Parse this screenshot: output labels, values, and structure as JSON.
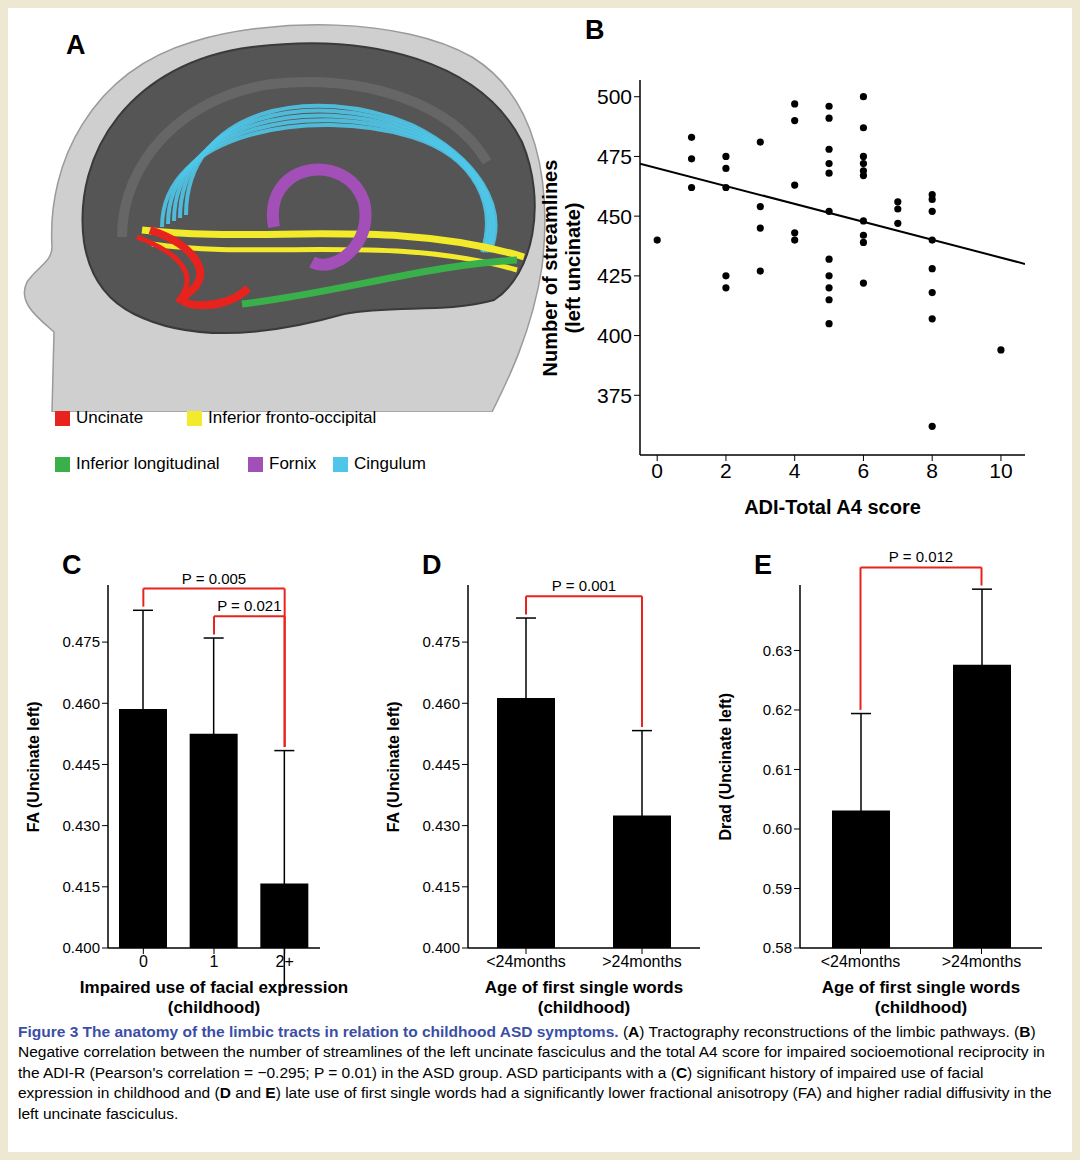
{
  "panel_a": {
    "label": "A",
    "legend": [
      {
        "name": "Uncinate",
        "color": "#e8231d"
      },
      {
        "name": "Inferior fronto-occipital",
        "color": "#f2ea2b"
      },
      {
        "name": "Inferior longitudinal",
        "color": "#39b04a"
      },
      {
        "name": "Fornix",
        "color": "#a24fb8"
      },
      {
        "name": "Cingulum",
        "color": "#4fc6e8"
      }
    ]
  },
  "chart_data": [
    {
      "label": "B",
      "type": "scatter",
      "x_label": "ADI-Total A4 score",
      "y_label": "Number of streamlines\n(left uncinate)",
      "color": "#000000",
      "x": [
        0,
        1,
        1,
        1,
        2,
        2,
        2,
        2,
        2,
        3,
        3,
        3,
        3,
        4,
        4,
        4,
        4,
        4,
        5,
        5,
        5,
        5,
        5,
        5,
        5,
        5,
        5,
        5,
        5,
        6,
        6,
        6,
        6,
        6,
        6,
        6,
        6,
        6,
        6,
        7,
        7,
        7,
        8,
        8,
        8,
        8,
        8,
        8,
        8,
        8,
        10
      ],
      "y": [
        440,
        483,
        474,
        462,
        475,
        470,
        462,
        425,
        420,
        481,
        454,
        445,
        427,
        497,
        490,
        463,
        443,
        440,
        496,
        491,
        478,
        472,
        468,
        452,
        432,
        425,
        420,
        415,
        405,
        500,
        487,
        475,
        472,
        469,
        467,
        448,
        442,
        439,
        422,
        456,
        453,
        447,
        459,
        457,
        452,
        440,
        428,
        418,
        407,
        362,
        394
      ],
      "trend_line": {
        "x": [
          -0.5,
          10.7
        ],
        "y": [
          472,
          430
        ]
      },
      "xlim": [
        -0.5,
        10.7
      ],
      "xticks": [
        0,
        2,
        4,
        6,
        8,
        10
      ],
      "ylim": [
        350,
        507
      ],
      "yticks": [
        375,
        400,
        425,
        450,
        475,
        500
      ]
    },
    {
      "label": "C",
      "type": "bar",
      "x_label": "Impaired use of facial expression\n(childhood)",
      "y_label": "FA (Uncinate left)",
      "categories": [
        "0",
        "1",
        "2+"
      ],
      "values": [
        0.4586,
        0.4525,
        0.4158
      ],
      "errors": [
        0.0242,
        0.0235,
        0.0326
      ],
      "color": "#000000",
      "ylim": [
        0.4,
        0.489
      ],
      "yticks": [
        {
          "value": 0.4,
          "label": "0.400"
        },
        {
          "value": 0.415,
          "label": "0.415"
        },
        {
          "value": 0.43,
          "label": "0.430"
        },
        {
          "value": 0.445,
          "label": "0.445"
        },
        {
          "value": 0.46,
          "label": "0.460"
        },
        {
          "value": 0.475,
          "label": "0.475"
        }
      ],
      "annotations": [
        {
          "from": "0",
          "to": "2+",
          "text": "P = 0.005",
          "color": "#e8231d"
        },
        {
          "from": "1",
          "to": "2+",
          "text": "P = 0.021",
          "color": "#e8231d"
        }
      ]
    },
    {
      "label": "D",
      "type": "bar",
      "x_label": "Age of first single words\n(childhood)",
      "y_label": "FA (Uncinate left)",
      "categories": [
        "<24months",
        ">24months"
      ],
      "values": [
        0.4613,
        0.4325
      ],
      "errors": [
        0.0196,
        0.0208
      ],
      "color": "#000000",
      "ylim": [
        0.4,
        0.489
      ],
      "yticks": [
        {
          "value": 0.4,
          "label": "0.400"
        },
        {
          "value": 0.415,
          "label": "0.415"
        },
        {
          "value": 0.43,
          "label": "0.430"
        },
        {
          "value": 0.445,
          "label": "0.445"
        },
        {
          "value": 0.46,
          "label": "0.460"
        },
        {
          "value": 0.475,
          "label": "0.475"
        }
      ],
      "annotations": [
        {
          "from": "<24months",
          "to": ">24months",
          "text": "P = 0.001",
          "color": "#e8231d"
        }
      ]
    },
    {
      "label": "E",
      "type": "bar",
      "x_label": "Age of first single words\n(childhood)",
      "y_label": "Drad (Uncinate left)",
      "categories": [
        "<24months",
        ">24months"
      ],
      "values": [
        0.6031,
        0.6276
      ],
      "errors": [
        0.0163,
        0.0127
      ],
      "color": "#000000",
      "ylim": [
        0.58,
        0.641
      ],
      "yticks": [
        0.58,
        0.59,
        {
          "value": 0.6,
          "label": "0.60"
        },
        0.61,
        0.62,
        0.63
      ],
      "annotations": [
        {
          "from": "<24months",
          "to": ">24months",
          "text": "P = 0.012",
          "color": "#e8231d"
        }
      ]
    }
  ],
  "caption": {
    "title": "Figure 3  The anatomy of the limbic tracts in relation to childhood ASD symptoms.",
    "text": "(A) Tractography reconstructions of the limbic pathways. (B) Negative correlation between the number of streamlines of the left uncinate fasciculus and the total A4 score for impaired socioemotional reciprocity in the ADI-R (Pearson's correlation = −0.295; P = 0.01) in the ASD group. ASD participants with a (C) significant history of impaired use of facial expression in childhood and (D and E) late use of first single words had a significantly lower fractional anisotropy (FA) and higher radial diffusivity in the left uncinate fasciculus."
  }
}
